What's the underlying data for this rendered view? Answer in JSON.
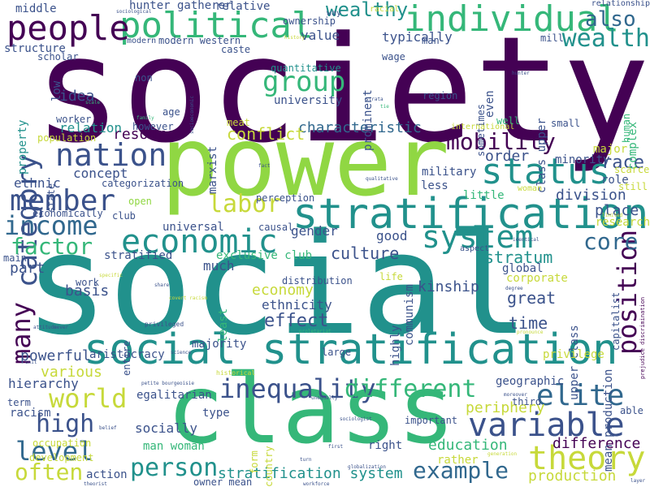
{
  "palette": {
    "purple": "#440154",
    "indigo": "#3b528b",
    "blue": "#31688e",
    "teal": "#21918c",
    "green": "#35b779",
    "lime": "#90d743",
    "yellow": "#c7d93a"
  },
  "words": [
    {
      "text": "society",
      "color": "#440154"
    },
    {
      "text": "social",
      "color": "#21918c"
    },
    {
      "text": "power",
      "color": "#90d743"
    },
    {
      "text": "class",
      "color": "#35b779"
    },
    {
      "text": "stratification",
      "color": "#21918c"
    },
    {
      "text": "social stratification",
      "color": "#21918c"
    },
    {
      "text": "political",
      "color": "#35b779"
    },
    {
      "text": "individual",
      "color": "#35b779"
    },
    {
      "text": "people",
      "color": "#440154"
    },
    {
      "text": "status",
      "color": "#21918c"
    },
    {
      "text": "economic",
      "color": "#21918c"
    },
    {
      "text": "nation",
      "color": "#3b528b"
    },
    {
      "text": "member",
      "color": "#3b528b"
    },
    {
      "text": "income",
      "color": "#31688e"
    },
    {
      "text": "variable",
      "color": "#3b528b"
    },
    {
      "text": "position",
      "color": "#440154"
    },
    {
      "text": "theory",
      "color": "#c7d93a"
    },
    {
      "text": "system",
      "color": "#21918c"
    },
    {
      "text": "wealth",
      "color": "#21918c"
    },
    {
      "text": "category",
      "color": "#3b528b"
    },
    {
      "text": "many",
      "color": "#440154"
    },
    {
      "text": "world",
      "color": "#c7d93a"
    },
    {
      "text": "elite",
      "color": "#31688e"
    },
    {
      "text": "inequality",
      "color": "#3b528b"
    },
    {
      "text": "different",
      "color": "#35b779"
    },
    {
      "text": "level",
      "color": "#31688e"
    },
    {
      "text": "high",
      "color": "#3b528b"
    },
    {
      "text": "often",
      "color": "#c7d93a"
    },
    {
      "text": "person",
      "color": "#21918c"
    },
    {
      "text": "example",
      "color": "#31688e"
    },
    {
      "text": "group",
      "color": "#35b779"
    },
    {
      "text": "mobility",
      "color": "#440154"
    },
    {
      "text": "factor",
      "color": "#35b779"
    },
    {
      "text": "labor",
      "color": "#c7d93a"
    },
    {
      "text": "core",
      "color": "#31688e"
    },
    {
      "text": "also",
      "color": "#31688e"
    },
    {
      "text": "wealthy",
      "color": "#21918c"
    },
    {
      "text": "race",
      "color": "#3b528b"
    },
    {
      "text": "periphery",
      "color": "#c7d93a"
    },
    {
      "text": "education",
      "color": "#35b779"
    },
    {
      "text": "difference",
      "color": "#440154"
    },
    {
      "text": "production",
      "color": "#c7d93a"
    },
    {
      "text": "stratification system",
      "color": "#21918c"
    },
    {
      "text": "culture",
      "color": "#3b528b"
    },
    {
      "text": "stratum",
      "color": "#21918c"
    },
    {
      "text": "great",
      "color": "#3b528b"
    },
    {
      "text": "kinship",
      "color": "#3b528b"
    },
    {
      "text": "time",
      "color": "#3b528b"
    },
    {
      "text": "effect",
      "color": "#3b528b"
    },
    {
      "text": "economy",
      "color": "#c7d93a"
    },
    {
      "text": "ethnicity",
      "color": "#3b528b"
    },
    {
      "text": "various",
      "color": "#c7d93a"
    },
    {
      "text": "powerful",
      "color": "#3b528b"
    },
    {
      "text": "hierarchy",
      "color": "#3b528b"
    },
    {
      "text": "characteristic",
      "color": "#31688e"
    },
    {
      "text": "conflict",
      "color": "#c7d93a"
    },
    {
      "text": "resource",
      "color": "#440154"
    },
    {
      "text": "concept",
      "color": "#3b528b"
    },
    {
      "text": "ethnic",
      "color": "#3b528b"
    },
    {
      "text": "order",
      "color": "#3b528b"
    },
    {
      "text": "division",
      "color": "#3b528b"
    },
    {
      "text": "place",
      "color": "#3b528b"
    },
    {
      "text": "gender",
      "color": "#3b528b"
    },
    {
      "text": "good",
      "color": "#3b528b"
    },
    {
      "text": "much",
      "color": "#3b528b"
    },
    {
      "text": "basis",
      "color": "#3b528b"
    },
    {
      "text": "part",
      "color": "#3b528b"
    },
    {
      "text": "idea",
      "color": "#3b528b"
    },
    {
      "text": "relation",
      "color": "#21918c"
    },
    {
      "text": "value",
      "color": "#3b528b"
    },
    {
      "text": "typically",
      "color": "#3b528b"
    },
    {
      "text": "middle",
      "color": "#3b528b"
    },
    {
      "text": "hunter gatherer",
      "color": "#3b528b"
    },
    {
      "text": "relative",
      "color": "#3b528b"
    },
    {
      "text": "structure",
      "color": "#3b528b"
    },
    {
      "text": "upper class",
      "color": "#3b528b"
    },
    {
      "text": "mean production",
      "color": "#3b528b"
    },
    {
      "text": "class upper",
      "color": "#3b528b"
    },
    {
      "text": "communism",
      "color": "#3b528b"
    },
    {
      "text": "prominent",
      "color": "#3b528b"
    },
    {
      "text": "highly",
      "color": "#3b528b"
    },
    {
      "text": "even",
      "color": "#3b528b"
    },
    {
      "text": "major",
      "color": "#c7d93a"
    },
    {
      "text": "minority",
      "color": "#3b528b"
    },
    {
      "text": "role",
      "color": "#3b528b"
    },
    {
      "text": "complex",
      "color": "#35b779"
    },
    {
      "text": "research",
      "color": "#c7d93a"
    },
    {
      "text": "corporate",
      "color": "#c7d93a"
    },
    {
      "text": "global",
      "color": "#3b528b"
    },
    {
      "text": "small",
      "color": "#3b528b"
    },
    {
      "text": "little",
      "color": "#35b779"
    },
    {
      "text": "military",
      "color": "#3b528b"
    },
    {
      "text": "less",
      "color": "#3b528b"
    },
    {
      "text": "region",
      "color": "#3b528b"
    },
    {
      "text": "university",
      "color": "#3b528b"
    },
    {
      "text": "quantitative",
      "color": "#21918c"
    },
    {
      "text": "wage",
      "color": "#3b528b"
    },
    {
      "text": "caste",
      "color": "#3b528b"
    },
    {
      "text": "modern western",
      "color": "#3b528b"
    },
    {
      "text": "low",
      "color": "#3b528b"
    },
    {
      "text": "non",
      "color": "#3b528b"
    },
    {
      "text": "age",
      "color": "#3b528b"
    },
    {
      "text": "however",
      "color": "#3b528b"
    },
    {
      "text": "worker",
      "color": "#3b528b"
    },
    {
      "text": "meat",
      "color": "#c7d93a"
    },
    {
      "text": "marxist",
      "color": "#3b528b"
    },
    {
      "text": "state",
      "color": "#3b528b"
    },
    {
      "text": "categorization",
      "color": "#3b528b"
    },
    {
      "text": "open",
      "color": "#90d743"
    },
    {
      "text": "club",
      "color": "#3b528b"
    },
    {
      "text": "universal",
      "color": "#3b528b"
    },
    {
      "text": "exclusive club",
      "color": "#35b779"
    },
    {
      "text": "stratified",
      "color": "#3b528b"
    },
    {
      "text": "economically",
      "color": "#3b528b"
    },
    {
      "text": "perception",
      "color": "#3b528b"
    },
    {
      "text": "causal",
      "color": "#3b528b"
    },
    {
      "text": "distribution",
      "color": "#3b528b"
    },
    {
      "text": "work",
      "color": "#3b528b"
    },
    {
      "text": "main",
      "color": "#3b528b"
    },
    {
      "text": "life",
      "color": "#c7d93a"
    },
    {
      "text": "entire",
      "color": "#3b528b"
    },
    {
      "text": "least",
      "color": "#35b779"
    },
    {
      "text": "majority",
      "color": "#3b528b"
    },
    {
      "text": "aristocracy",
      "color": "#3b528b"
    },
    {
      "text": "large",
      "color": "#3b528b"
    },
    {
      "text": "privilege",
      "color": "#c7d93a"
    },
    {
      "text": "geographic",
      "color": "#3b528b"
    },
    {
      "text": "egalitarian",
      "color": "#3b528b"
    },
    {
      "text": "type",
      "color": "#3b528b"
    },
    {
      "text": "socially",
      "color": "#3b528b"
    },
    {
      "text": "man woman",
      "color": "#35b779"
    },
    {
      "text": "important",
      "color": "#3b528b"
    },
    {
      "text": "right",
      "color": "#3b528b"
    },
    {
      "text": "rather",
      "color": "#c7d93a"
    },
    {
      "text": "action",
      "color": "#3b528b"
    },
    {
      "text": "owner mean",
      "color": "#3b528b"
    },
    {
      "text": "development",
      "color": "#c7d93a"
    },
    {
      "text": "term",
      "color": "#3b528b"
    },
    {
      "text": "racism",
      "color": "#3b528b"
    },
    {
      "text": "occupation",
      "color": "#c7d93a"
    },
    {
      "text": "form",
      "color": "#c7d93a"
    },
    {
      "text": "country",
      "color": "#c7d93a"
    },
    {
      "text": "able",
      "color": "#3b528b"
    },
    {
      "text": "third",
      "color": "#3b528b"
    },
    {
      "text": "capitalist",
      "color": "#3b528b"
    },
    {
      "text": "scarce",
      "color": "#c7d93a"
    },
    {
      "text": "still",
      "color": "#c7d93a"
    },
    {
      "text": "human",
      "color": "#35b779"
    },
    {
      "text": "relationship",
      "color": "#3b528b"
    },
    {
      "text": "property",
      "color": "#21918c"
    },
    {
      "text": "population",
      "color": "#c7d93a"
    },
    {
      "text": "scholar",
      "color": "#3b528b"
    },
    {
      "text": "ownership",
      "color": "#3b528b"
    },
    {
      "text": "way",
      "color": "#3b528b"
    },
    {
      "text": "racial",
      "color": "#c7d93a"
    },
    {
      "text": "mill",
      "color": "#3b528b"
    },
    {
      "text": "man",
      "color": "#3b528b"
    },
    {
      "text": "sometimes",
      "color": "#3b528b"
    },
    {
      "text": "international",
      "color": "#c7d93a"
    },
    {
      "text": "well",
      "color": "#35b779"
    },
    {
      "text": "woman",
      "color": "#c7d93a"
    },
    {
      "text": "aspect",
      "color": "#3b528b"
    },
    {
      "text": "history",
      "color": "#c7d93a"
    },
    {
      "text": "modern",
      "color": "#3b528b"
    },
    {
      "text": "sociological",
      "color": "#3b528b"
    },
    {
      "text": "fact",
      "color": "#3b528b"
    },
    {
      "text": "qualitative",
      "color": "#3b528b"
    },
    {
      "text": "strata",
      "color": "#3b528b"
    },
    {
      "text": "tie",
      "color": "#35b779"
    },
    {
      "text": "socioeconomic",
      "color": "#3b528b"
    },
    {
      "text": "scale",
      "color": "#35b779"
    },
    {
      "text": "family",
      "color": "#35b779"
    },
    {
      "text": "hunter",
      "color": "#3b528b"
    },
    {
      "text": "specific",
      "color": "#c7d93a"
    },
    {
      "text": "share",
      "color": "#3b528b"
    },
    {
      "text": "covert racism",
      "color": "#c7d93a"
    },
    {
      "text": "privileged",
      "color": "#3b528b"
    },
    {
      "text": "science",
      "color": "#3b528b"
    },
    {
      "text": "attitude",
      "color": "#3b528b"
    },
    {
      "text": "never",
      "color": "#3b528b"
    },
    {
      "text": "unit",
      "color": "#3b528b"
    },
    {
      "text": "historical",
      "color": "#c7d93a"
    },
    {
      "text": "petite bourgeoisie",
      "color": "#3b528b"
    },
    {
      "text": "proletariat",
      "color": "#35b779"
    },
    {
      "text": "belief",
      "color": "#3b528b"
    },
    {
      "text": "sociologist",
      "color": "#3b528b"
    },
    {
      "text": "unequally",
      "color": "#3b528b"
    },
    {
      "text": "workforce",
      "color": "#3b528b"
    },
    {
      "text": "globalization",
      "color": "#3b528b"
    },
    {
      "text": "generation",
      "color": "#c7d93a"
    },
    {
      "text": "first",
      "color": "#3b528b"
    },
    {
      "text": "turn",
      "color": "#3b528b"
    },
    {
      "text": "theorist",
      "color": "#3b528b"
    },
    {
      "text": "layer",
      "color": "#3b528b"
    },
    {
      "text": "degree",
      "color": "#3b528b"
    },
    {
      "text": "identical",
      "color": "#3b528b"
    },
    {
      "text": "limited",
      "color": "#c7d93a"
    },
    {
      "text": "prejudice discrimination",
      "color": "#440154"
    },
    {
      "text": "pronounce",
      "color": "#c7d93a"
    },
    {
      "text": "moreover",
      "color": "#3b528b"
    }
  ]
}
